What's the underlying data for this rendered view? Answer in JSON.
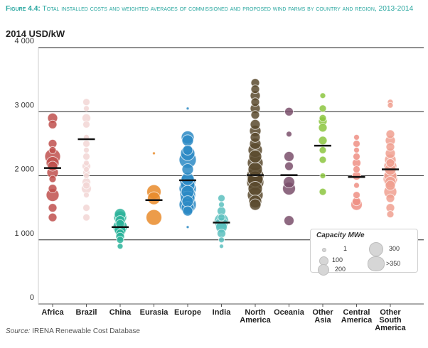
{
  "figure": {
    "label": "Figure 4.4:",
    "title": "Total installed costs and weighted averages of commissioned and proposed wind farms by country and region, 2013-2014"
  },
  "source": {
    "prefix": "Source:",
    "text": "IRENA Renewable Cost Database"
  },
  "legend": {
    "title": "Capacity MWe",
    "items": [
      "1",
      "100",
      "200",
      "300",
      ">350"
    ]
  },
  "chart_data": {
    "type": "scatter",
    "ylabel": "2014 USD/kW",
    "ylim": [
      0,
      4000
    ],
    "yticks": [
      "0",
      "1 000",
      "2 000",
      "3 000",
      "4 000"
    ],
    "grid": true,
    "categories": [
      {
        "label": [
          "Africa"
        ],
        "color": "#c0504d",
        "points": [
          [
            2900,
            7
          ],
          [
            2800,
            6
          ],
          [
            2500,
            6
          ],
          [
            2400,
            5
          ],
          [
            2300,
            11
          ],
          [
            2200,
            9
          ],
          [
            2150,
            7
          ],
          [
            2050,
            8
          ],
          [
            1950,
            5
          ],
          [
            1800,
            6
          ],
          [
            1700,
            9
          ],
          [
            1500,
            6
          ],
          [
            1350,
            6
          ]
        ],
        "avg": 2120
      },
      {
        "label": [
          "Brazil"
        ],
        "color": "#f2d6d5",
        "points": [
          [
            3150,
            5
          ],
          [
            3050,
            4
          ],
          [
            2900,
            6
          ],
          [
            2800,
            5
          ],
          [
            2600,
            4
          ],
          [
            2500,
            5
          ],
          [
            2400,
            4
          ],
          [
            2300,
            5
          ],
          [
            2200,
            4
          ],
          [
            2150,
            6
          ],
          [
            2100,
            4
          ],
          [
            2050,
            5
          ],
          [
            2000,
            4
          ],
          [
            1900,
            6
          ],
          [
            1850,
            5
          ],
          [
            1800,
            7
          ],
          [
            1700,
            4
          ],
          [
            1500,
            5
          ],
          [
            1350,
            5
          ]
        ],
        "avg": 2570
      },
      {
        "label": [
          "China"
        ],
        "color": "#2bb39a",
        "points": [
          [
            1400,
            8
          ],
          [
            1350,
            9
          ],
          [
            1300,
            7
          ],
          [
            1250,
            6
          ],
          [
            1200,
            10
          ],
          [
            1150,
            8
          ],
          [
            1100,
            6
          ],
          [
            1050,
            6
          ],
          [
            1000,
            5
          ],
          [
            900,
            4
          ]
        ],
        "avg": 1200
      },
      {
        "label": [
          "Eurasia"
        ],
        "color": "#e98b2a",
        "points": [
          [
            2350,
            2
          ],
          [
            1750,
            10
          ],
          [
            1650,
            9
          ],
          [
            1350,
            11
          ]
        ],
        "avg": 1620
      },
      {
        "label": [
          "Europe"
        ],
        "color": "#2c8ac4",
        "points": [
          [
            3050,
            2
          ],
          [
            2600,
            9
          ],
          [
            2550,
            8
          ],
          [
            2400,
            7
          ],
          [
            2350,
            10
          ],
          [
            2250,
            12
          ],
          [
            2100,
            8
          ],
          [
            1950,
            9
          ],
          [
            1900,
            11
          ],
          [
            1850,
            10
          ],
          [
            1800,
            12
          ],
          [
            1750,
            9
          ],
          [
            1700,
            11
          ],
          [
            1650,
            10
          ],
          [
            1600,
            8
          ],
          [
            1550,
            12
          ],
          [
            1500,
            9
          ],
          [
            1450,
            7
          ],
          [
            1200,
            2
          ]
        ],
        "avg": 1930
      },
      {
        "label": [
          "India"
        ],
        "color": "#5cc0be",
        "points": [
          [
            1650,
            5
          ],
          [
            1550,
            4
          ],
          [
            1450,
            6
          ],
          [
            1350,
            5
          ],
          [
            1300,
            10
          ],
          [
            1250,
            9
          ],
          [
            1200,
            8
          ],
          [
            1100,
            6
          ],
          [
            1000,
            4
          ],
          [
            900,
            3
          ]
        ],
        "avg": 1270
      },
      {
        "label": [
          "North",
          "America"
        ],
        "color": "#5a4a2e",
        "points": [
          [
            3450,
            6
          ],
          [
            3350,
            6
          ],
          [
            3250,
            7
          ],
          [
            3150,
            6
          ],
          [
            3050,
            7
          ],
          [
            2950,
            6
          ],
          [
            2800,
            7
          ],
          [
            2700,
            8
          ],
          [
            2600,
            7
          ],
          [
            2500,
            8
          ],
          [
            2400,
            10
          ],
          [
            2300,
            9
          ],
          [
            2200,
            11
          ],
          [
            2100,
            10
          ],
          [
            2000,
            12
          ],
          [
            1950,
            11
          ],
          [
            1900,
            12
          ],
          [
            1800,
            10
          ],
          [
            1700,
            11
          ],
          [
            1600,
            9
          ],
          [
            1550,
            8
          ]
        ],
        "avg": 2010
      },
      {
        "label": [
          "Oceania"
        ],
        "color": "#7a4f6b",
        "points": [
          [
            3000,
            6
          ],
          [
            2650,
            4
          ],
          [
            2300,
            7
          ],
          [
            2150,
            6
          ],
          [
            1900,
            8
          ],
          [
            1800,
            9
          ],
          [
            1300,
            7
          ]
        ],
        "avg": 2010
      },
      {
        "label": [
          "Other",
          "Asia"
        ],
        "color": "#8cc63f",
        "points": [
          [
            3250,
            4
          ],
          [
            3050,
            5
          ],
          [
            2900,
            5
          ],
          [
            2850,
            6
          ],
          [
            2750,
            6
          ],
          [
            2550,
            6
          ],
          [
            2400,
            5
          ],
          [
            2250,
            5
          ],
          [
            2000,
            4
          ],
          [
            1750,
            5
          ]
        ],
        "avg": 2470
      },
      {
        "label": [
          "Central",
          "America"
        ],
        "color": "#ef8f84",
        "points": [
          [
            2600,
            4
          ],
          [
            2500,
            5
          ],
          [
            2400,
            4
          ],
          [
            2300,
            5
          ],
          [
            2200,
            6
          ],
          [
            2100,
            5
          ],
          [
            2000,
            6
          ],
          [
            1850,
            4
          ],
          [
            1700,
            5
          ],
          [
            1600,
            6
          ],
          [
            1550,
            8
          ]
        ],
        "avg": 1980
      },
      {
        "label": [
          "Other",
          "South",
          "America"
        ],
        "color": "#f0a090",
        "points": [
          [
            3150,
            4
          ],
          [
            3100,
            4
          ],
          [
            2650,
            6
          ],
          [
            2550,
            7
          ],
          [
            2450,
            6
          ],
          [
            2350,
            7
          ],
          [
            2250,
            8
          ],
          [
            2200,
            6
          ],
          [
            2150,
            9
          ],
          [
            2100,
            8
          ],
          [
            2000,
            9
          ],
          [
            1950,
            10
          ],
          [
            1900,
            8
          ],
          [
            1850,
            7
          ],
          [
            1750,
            9
          ],
          [
            1650,
            6
          ],
          [
            1500,
            6
          ],
          [
            1400,
            5
          ]
        ],
        "avg": 2100
      }
    ]
  }
}
